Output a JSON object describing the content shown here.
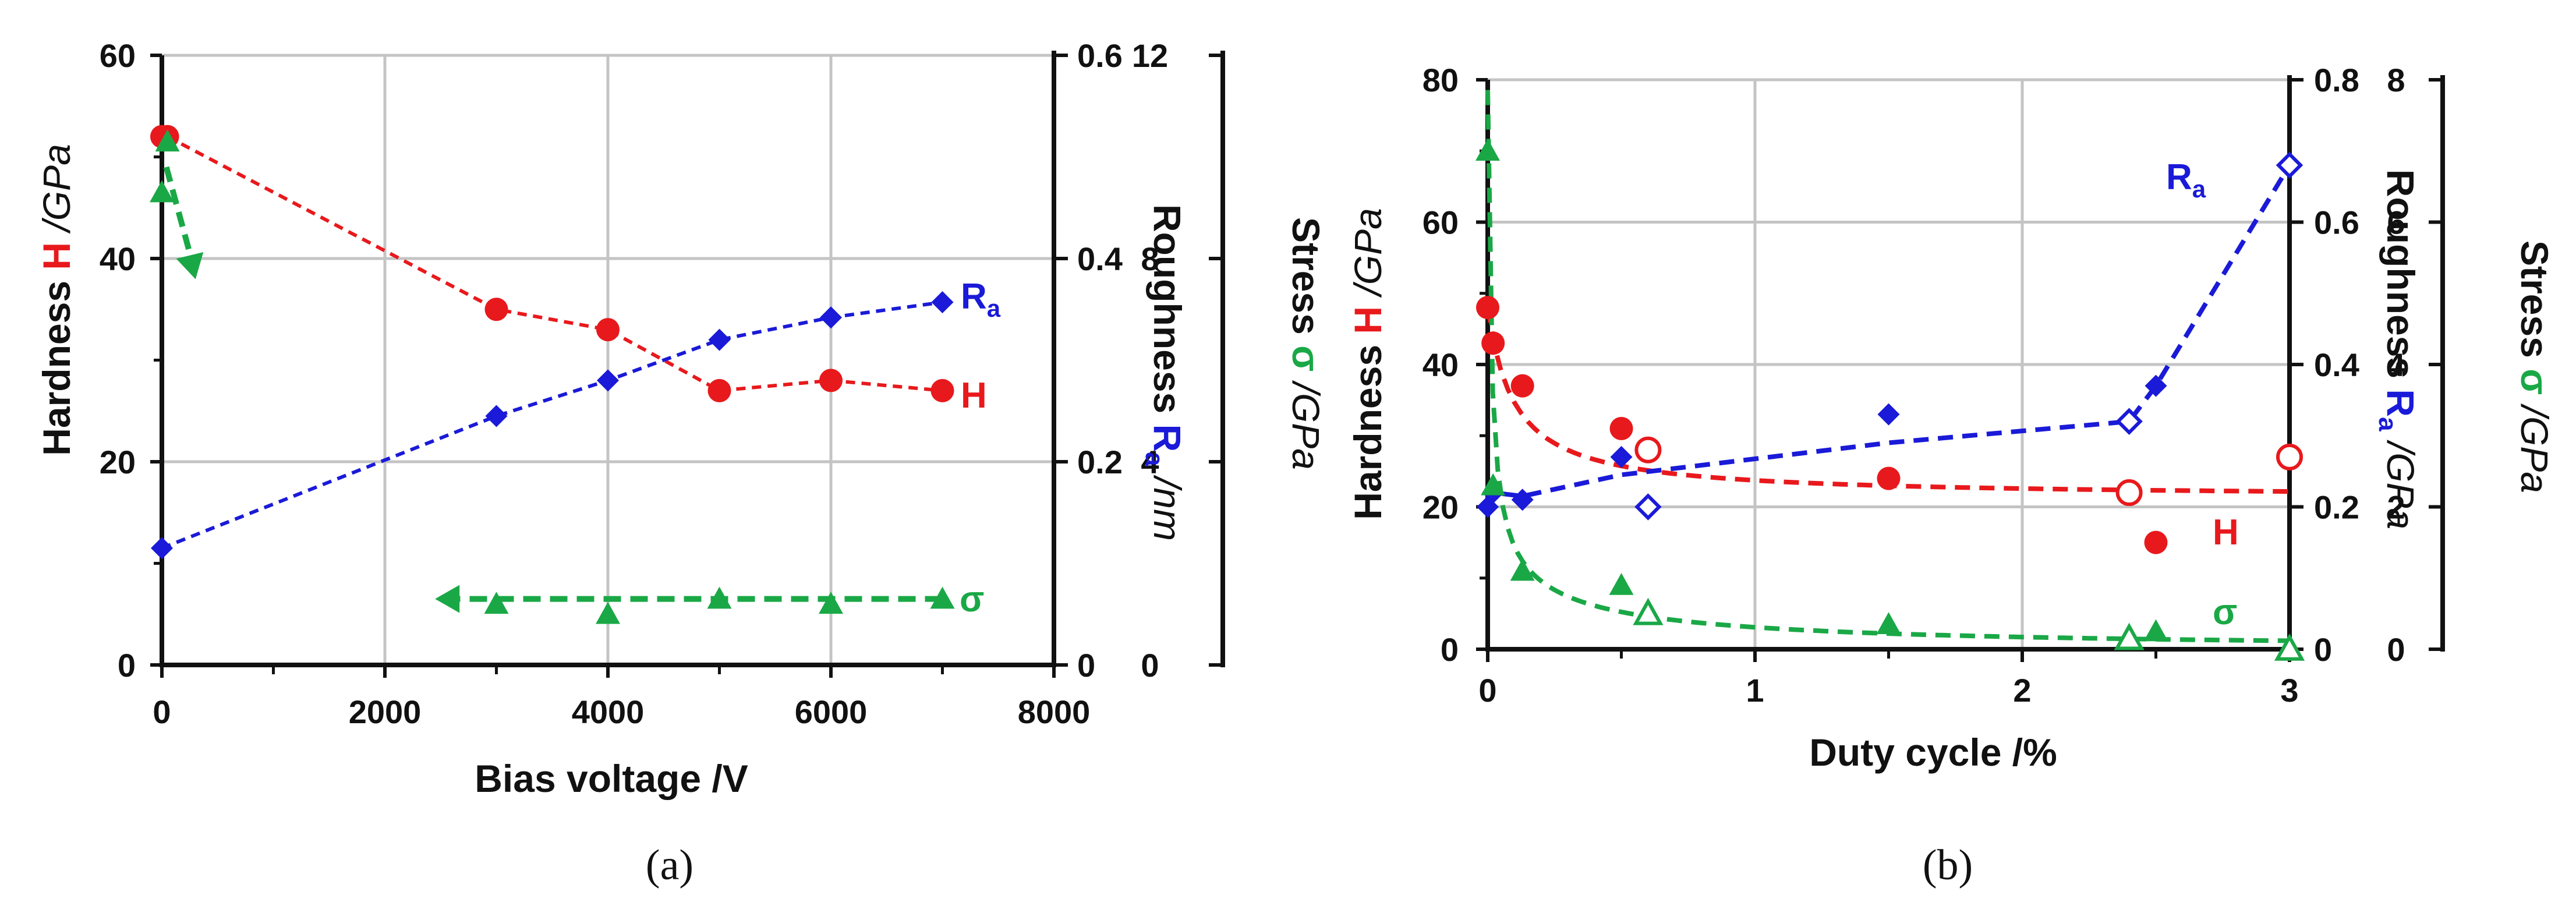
{
  "colors": {
    "hardness": "#e8191c",
    "roughness": "#1a1ad8",
    "stress": "#1aa846",
    "axis": "#111111",
    "grid": "#c4c4c4"
  },
  "chart_data": [
    {
      "type": "scatter",
      "panel_label": "(a)",
      "xlabel": "Bias voltage /V",
      "xlim": [
        0,
        8000
      ],
      "x_ticks": [
        "0",
        "2000",
        "4000",
        "6000",
        "8000"
      ],
      "left_axis": {
        "title_prefix": "Hardness ",
        "title_symbol": "H",
        "title_unit": " /GPa",
        "ylim": [
          0,
          60
        ],
        "ticks": [
          "0",
          "20",
          "40",
          "60"
        ]
      },
      "roughness_axis": {
        "title_prefix": "Roughness ",
        "title_symbol": "R",
        "title_sub": "a",
        "title_unit": " /nm",
        "ylim": [
          0,
          0.6
        ],
        "ticks": [
          "0",
          "0.2",
          "0.4",
          "0.6"
        ]
      },
      "stress_axis": {
        "title_prefix": "Stress ",
        "title_symbol": "σ",
        "title_unit": " /GPa",
        "ylim": [
          0,
          12
        ],
        "ticks": [
          "0",
          "4",
          "8",
          "12"
        ]
      },
      "series": [
        {
          "name": "H",
          "axis": "left",
          "marker": "circle",
          "x": [
            0,
            50,
            3000,
            4000,
            5000,
            6000,
            7000
          ],
          "y": [
            52,
            52,
            35,
            33,
            27,
            28,
            27
          ]
        },
        {
          "name": "Ra",
          "axis": "roughness",
          "marker": "diamond",
          "x": [
            0,
            3000,
            4000,
            5000,
            6000,
            7000
          ],
          "y": [
            0.115,
            0.245,
            0.28,
            0.32,
            0.342,
            0.357
          ]
        },
        {
          "name": "σ",
          "axis": "stress",
          "marker": "triangle",
          "x": [
            0,
            50,
            3000,
            4000,
            5000,
            6000,
            7000
          ],
          "y": [
            9.3,
            10.3,
            1.2,
            1.0,
            1.3,
            1.2,
            1.3
          ]
        }
      ],
      "annotations": [
        "R",
        "a",
        "H",
        "σ"
      ]
    },
    {
      "type": "scatter",
      "panel_label": "(b)",
      "xlabel": "Duty cycle /%",
      "xlim": [
        0,
        3
      ],
      "x_ticks": [
        "0",
        "1",
        "2",
        "3"
      ],
      "left_axis": {
        "title_prefix": "Hardness ",
        "title_symbol": "H",
        "title_unit": " /GPa",
        "ylim": [
          0,
          80
        ],
        "ticks": [
          "0",
          "20",
          "40",
          "60",
          "80"
        ]
      },
      "roughness_axis": {
        "title_prefix": "Roughness ",
        "title_symbol": "R",
        "title_sub": "a",
        "title_unit": " /GPa",
        "ylim": [
          0,
          0.8
        ],
        "ticks": [
          "0",
          "0.2",
          "0.4",
          "0.6",
          "0.8"
        ]
      },
      "stress_axis": {
        "title_prefix": "Stress ",
        "title_symbol": "σ",
        "title_unit": " /GPa",
        "ylim": [
          0,
          8
        ],
        "ticks": [
          "0",
          "2",
          "4",
          "6",
          "8"
        ]
      },
      "series": [
        {
          "name": "H",
          "axis": "left",
          "x": [
            0,
            0.02,
            0.13,
            0.5,
            1.5,
            2.5
          ],
          "y": [
            48,
            43,
            37,
            31,
            24,
            15
          ],
          "open_x": [
            0.6,
            2.4,
            3.0
          ],
          "open_y": [
            28,
            22,
            27
          ]
        },
        {
          "name": "Ra",
          "axis": "roughness",
          "x": [
            0,
            0.02,
            0.13,
            0.5,
            1.5,
            2.5
          ],
          "y": [
            0.2,
            0.22,
            0.21,
            0.27,
            0.33,
            0.37
          ],
          "open_x": [
            0.6,
            2.4,
            3.0
          ],
          "open_y": [
            0.2,
            0.32,
            0.68
          ]
        },
        {
          "name": "σ",
          "axis": "stress",
          "x": [
            0,
            0.02,
            0.13,
            0.5,
            1.5,
            2.5
          ],
          "y": [
            7.0,
            2.3,
            1.1,
            0.9,
            0.35,
            0.25
          ],
          "open_x": [
            0.6,
            2.4,
            3.0
          ],
          "open_y": [
            0.5,
            0.15,
            0.0
          ]
        }
      ],
      "annotations": [
        "R",
        "a",
        "H",
        "σ"
      ]
    }
  ]
}
